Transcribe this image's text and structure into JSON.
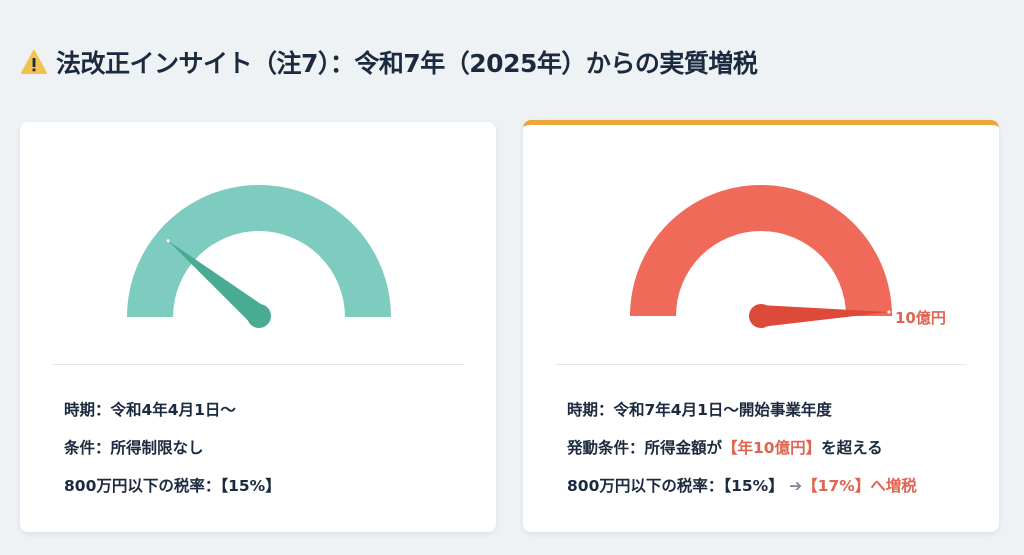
{
  "title": {
    "icon": "warning-icon",
    "text": "法改正インサイト（注7）：令和7年（2025年）からの実質増税"
  },
  "left_card": {
    "gauge": {
      "color": "#7ecbc0",
      "needle_color": "#4aab94",
      "needle_fraction": 0.22
    },
    "lines": [
      "時期：令和4年4月1日～",
      "条件：所得制限なし",
      "800万円以下の税率：【15%】"
    ]
  },
  "right_card": {
    "accent": "#e8a83a",
    "gauge": {
      "color": "#ef6a58",
      "needle_color": "#de4a3a",
      "needle_fraction": 0.99,
      "label": "10億円"
    },
    "line1": "時期：令和7年4月1日～開始事業年度",
    "line2": {
      "prefix": "発動条件：所得金額が",
      "highlight": "【年10億円】",
      "suffix": "を超える"
    },
    "line3": {
      "prefix": "800万円以下の税率：【15%】",
      "arrow": "➔",
      "highlight": "【17%】へ増税"
    }
  }
}
